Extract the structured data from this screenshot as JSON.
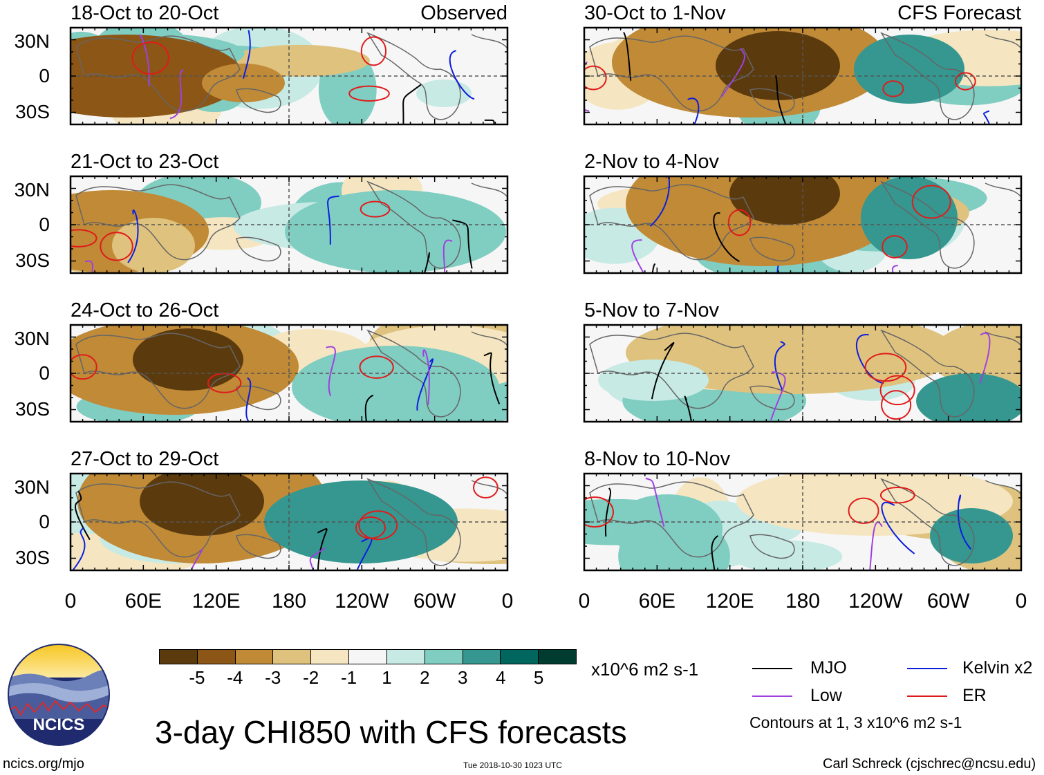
{
  "figure": {
    "title": "3-day CHI850 with CFS forecasts",
    "left_header": "Observed",
    "right_header": "CFS Forecast",
    "y_labels": [
      "30N",
      "0",
      "30S"
    ],
    "x_labels": [
      "0",
      "60E",
      "120E",
      "180",
      "120W",
      "60W",
      "0"
    ]
  },
  "panels": [
    {
      "period": "18-Oct to 20-Oct",
      "kind": "observed"
    },
    {
      "period": "21-Oct to 23-Oct",
      "kind": "observed"
    },
    {
      "period": "24-Oct to 26-Oct",
      "kind": "observed"
    },
    {
      "period": "27-Oct to 29-Oct",
      "kind": "observed"
    },
    {
      "period": "30-Oct to 1-Nov",
      "kind": "forecast"
    },
    {
      "period": "2-Nov to 4-Nov",
      "kind": "forecast"
    },
    {
      "period": "5-Nov to 7-Nov",
      "kind": "forecast"
    },
    {
      "period": "8-Nov to 10-Nov",
      "kind": "forecast"
    }
  ],
  "colorbar": {
    "colors": [
      "#5b3a0e",
      "#8c5616",
      "#c08a37",
      "#dfc27d",
      "#f5e6c1",
      "#f6f6f6",
      "#c7eae5",
      "#80cdc1",
      "#35978f",
      "#01665e",
      "#003c30"
    ],
    "labels": [
      "-5",
      "-4",
      "-3",
      "-2",
      "-1",
      "1",
      "2",
      "3",
      "4",
      "5"
    ],
    "units": "x10^6 m2 s-1"
  },
  "legend": {
    "items": [
      {
        "label": "MJO",
        "color": "#000000"
      },
      {
        "label": "Kelvin x2",
        "color": "#0b1ee0"
      },
      {
        "label": "Low",
        "color": "#a040e0"
      },
      {
        "label": "ER",
        "color": "#e01b1b"
      }
    ],
    "contour_note": "Contours at 1, 3 x10^6 m2 s-1"
  },
  "logo": {
    "text": "NCICS"
  },
  "footer": {
    "site": "ncics.org/mjo",
    "timestamp": "Tue 2018-10-30 1023 UTC",
    "credit": "Carl Schreck (cjschrec@ncsu.edu)"
  }
}
